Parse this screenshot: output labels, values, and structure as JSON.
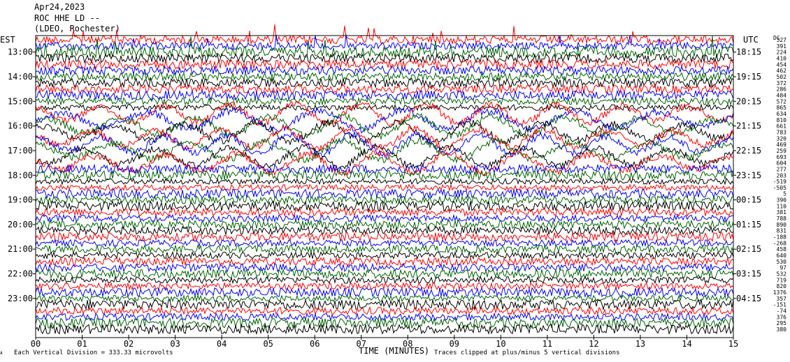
{
  "header": {
    "date": "Apr24,2023",
    "station": "ROC HHE LD --",
    "location": "(LDEO, Rochester)"
  },
  "chart_data": {
    "type": "line",
    "title": "ROC HHE LD --",
    "xlabel": "TIME (MINUTES)",
    "xlim": [
      0,
      15
    ],
    "x_ticks": [
      "00",
      "01",
      "02",
      "03",
      "04",
      "05",
      "06",
      "07",
      "08",
      "09",
      "10",
      "11",
      "12",
      "13",
      "14",
      "15"
    ],
    "left_axis_label": "EST",
    "right_axis_label": "UTC",
    "est_labels": [
      "13:00",
      "14:00",
      "15:00",
      "16:00",
      "17:00",
      "18:00",
      "19:00",
      "20:00",
      "21:00",
      "22:00",
      "23:00"
    ],
    "utc_labels": [
      "18:15",
      "19:15",
      "20:15",
      "21:15",
      "22:15",
      "23:15",
      "00:15",
      "01:15",
      "02:15",
      "03:15",
      "04:15"
    ],
    "dc_header": "DC",
    "dc_offsets": [
      "327",
      "391",
      "224",
      "410",
      "454",
      "462",
      "502",
      "372",
      "286",
      "484",
      "572",
      "865",
      "634",
      "810",
      "661",
      "783",
      "320",
      "469",
      "259",
      "693",
      "604",
      "277",
      "203",
      "-519",
      "-505",
      "5",
      "390",
      "110",
      "381",
      "788",
      "890",
      "831",
      "-188",
      "-268",
      "458",
      "640",
      "530",
      "97",
      "532",
      "719",
      "820",
      "1376",
      "357",
      "-151",
      "-74",
      "376",
      "295",
      "380"
    ],
    "trace_colors": [
      "#ff0000",
      "#0000ff",
      "#006400",
      "#000000"
    ],
    "trace_count": 48,
    "minutes_per_trace": 15,
    "scale_note": "Each Vertical Division =  333.33 microvolts",
    "clip_note": "Traces clipped at plus/minus 5 vertical divisions"
  }
}
